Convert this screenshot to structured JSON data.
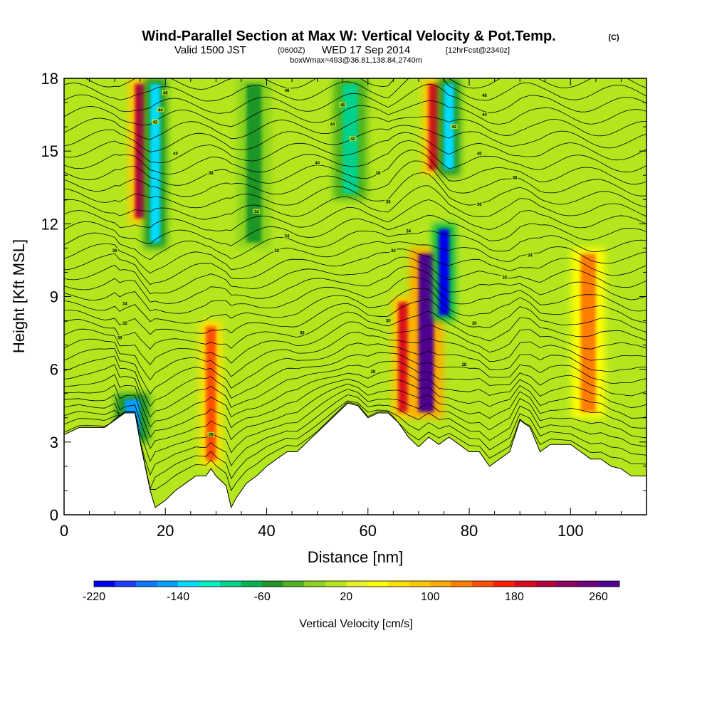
{
  "title": {
    "main": "Wind-Parallel Section at Max W: Vertical Velocity & Pot.Temp.",
    "main_suffix": "(C)",
    "sub_a": "Valid 1500 JST",
    "sub_b": "(0600Z)",
    "sub_c": "WED 17 Sep 2014",
    "sub_d": "[12hrFcst@2340z]",
    "small": "boxWmax=493@36.81,138.84,2740m"
  },
  "chart_data": {
    "type": "heatmap",
    "xlabel": "Distance [nm]",
    "ylabel": "Height [Kft MSL]",
    "xlim": [
      0,
      115
    ],
    "ylim": [
      0,
      18
    ],
    "x_ticks": [
      0,
      20,
      40,
      60,
      80,
      100
    ],
    "y_ticks": [
      0,
      3,
      6,
      9,
      12,
      15,
      18
    ],
    "x_tick_labels": [
      "0",
      "20",
      "40",
      "60",
      "80",
      "100"
    ],
    "y_tick_labels": [
      "0",
      "3",
      "6",
      "9",
      "12",
      "15",
      "18"
    ],
    "colorbar": {
      "title": "Vertical Velocity [cm/s]",
      "min": -220,
      "max": 280,
      "step": 20,
      "labeled_values": [
        -220,
        -140,
        -60,
        20,
        100,
        180,
        260
      ],
      "labels": [
        "-220",
        "-140",
        "-60",
        "20",
        "100",
        "180",
        "260"
      ],
      "colors": [
        "#0000f0",
        "#1e3cff",
        "#0a78ff",
        "#00a0ff",
        "#00dcff",
        "#00f0c8",
        "#00d28c",
        "#00b450",
        "#1e9628",
        "#50b41e",
        "#8cd21e",
        "#b4e61e",
        "#e6f028",
        "#ffff00",
        "#ffe100",
        "#ffc800",
        "#ffaa00",
        "#ff7d00",
        "#ff5000",
        "#ff1e00",
        "#dc0a1e",
        "#b4003c",
        "#8c0064",
        "#6e007d",
        "#500091"
      ]
    },
    "terrain_profile": {
      "x": [
        0,
        3,
        8,
        10,
        12,
        14,
        15,
        16,
        17,
        18,
        20,
        22,
        24,
        26,
        28,
        29,
        30,
        32,
        33,
        34,
        36,
        38,
        40,
        42,
        44,
        46,
        48,
        50,
        52,
        54,
        56,
        58,
        60,
        62,
        64,
        66,
        68,
        70,
        72,
        74,
        76,
        78,
        80,
        82,
        84,
        86,
        88,
        90,
        92,
        94,
        96,
        98,
        100,
        102,
        104,
        106,
        108,
        110,
        112,
        115
      ],
      "height": [
        3.3,
        3.6,
        3.6,
        3.9,
        4.2,
        4.2,
        3.0,
        2.0,
        1.0,
        0.3,
        0.6,
        1.0,
        1.3,
        1.6,
        1.6,
        1.9,
        1.6,
        1.2,
        0.3,
        0.7,
        1.3,
        1.6,
        2.0,
        2.3,
        2.6,
        2.6,
        3.0,
        3.4,
        3.8,
        4.2,
        4.6,
        4.5,
        4.0,
        4.2,
        4.2,
        3.8,
        3.2,
        2.8,
        3.2,
        2.9,
        3.2,
        2.9,
        2.6,
        2.6,
        2.0,
        2.3,
        2.6,
        3.9,
        3.6,
        2.6,
        2.9,
        2.9,
        2.9,
        2.6,
        2.3,
        2.3,
        2.0,
        1.9,
        1.6,
        1.6
      ]
    },
    "updraft_bands": [
      {
        "x0": 14,
        "x1": 16,
        "top": 18,
        "bottom": 12,
        "w": 200
      },
      {
        "x0": 28,
        "x1": 30,
        "top": 8,
        "bottom": 2,
        "w": 140
      },
      {
        "x0": 66,
        "x1": 68,
        "top": 9,
        "bottom": 4,
        "w": 180
      },
      {
        "x0": 70,
        "x1": 73,
        "top": 11,
        "bottom": 4,
        "w": 260
      },
      {
        "x0": 102,
        "x1": 105,
        "top": 11,
        "bottom": 4,
        "w": 120
      },
      {
        "x0": 72,
        "x1": 74,
        "top": 18,
        "bottom": 14,
        "w": 180
      }
    ],
    "downdraft_bands": [
      {
        "x0": 12,
        "x1": 15,
        "top": 5,
        "bottom": 3,
        "w": -160
      },
      {
        "x0": 17,
        "x1": 19,
        "top": 18,
        "bottom": 11,
        "w": -140
      },
      {
        "x0": 74,
        "x1": 76,
        "top": 12,
        "bottom": 8,
        "w": -220
      },
      {
        "x0": 75,
        "x1": 77,
        "top": 18,
        "bottom": 14,
        "w": -140
      },
      {
        "x0": 36,
        "x1": 39,
        "top": 18,
        "bottom": 11,
        "w": -60
      },
      {
        "x0": 55,
        "x1": 58,
        "top": 18,
        "bottom": 13,
        "w": -100
      }
    ],
    "contour_labels": [
      {
        "x": 20,
        "y": 17.4,
        "text": "46"
      },
      {
        "x": 19,
        "y": 16.7,
        "text": "44"
      },
      {
        "x": 18,
        "y": 16.2,
        "text": "42"
      },
      {
        "x": 22,
        "y": 14.9,
        "text": "40"
      },
      {
        "x": 29,
        "y": 14.1,
        "text": "38"
      },
      {
        "x": 10,
        "y": 10.9,
        "text": "36"
      },
      {
        "x": 12,
        "y": 8.7,
        "text": "34"
      },
      {
        "x": 12,
        "y": 7.9,
        "text": "32"
      },
      {
        "x": 11,
        "y": 7.3,
        "text": "30"
      },
      {
        "x": 44,
        "y": 17.5,
        "text": "48"
      },
      {
        "x": 55,
        "y": 16.9,
        "text": "46"
      },
      {
        "x": 53,
        "y": 16.1,
        "text": "44"
      },
      {
        "x": 57,
        "y": 15.5,
        "text": "42"
      },
      {
        "x": 50,
        "y": 14.5,
        "text": "40"
      },
      {
        "x": 62,
        "y": 14.1,
        "text": "38"
      },
      {
        "x": 64,
        "y": 12.9,
        "text": "36"
      },
      {
        "x": 38,
        "y": 12.5,
        "text": "34"
      },
      {
        "x": 44,
        "y": 11.5,
        "text": "34"
      },
      {
        "x": 42,
        "y": 10.9,
        "text": "32"
      },
      {
        "x": 65,
        "y": 10.9,
        "text": "32"
      },
      {
        "x": 68,
        "y": 11.7,
        "text": "34"
      },
      {
        "x": 47,
        "y": 7.5,
        "text": "30"
      },
      {
        "x": 64,
        "y": 8.0,
        "text": "30"
      },
      {
        "x": 61,
        "y": 5.9,
        "text": "28"
      },
      {
        "x": 29,
        "y": 3.3,
        "text": "28"
      },
      {
        "x": 83,
        "y": 17.3,
        "text": "48"
      },
      {
        "x": 83,
        "y": 16.5,
        "text": "44"
      },
      {
        "x": 77,
        "y": 16.0,
        "text": "42"
      },
      {
        "x": 82,
        "y": 14.9,
        "text": "40"
      },
      {
        "x": 89,
        "y": 13.9,
        "text": "38"
      },
      {
        "x": 82,
        "y": 12.8,
        "text": "36"
      },
      {
        "x": 92,
        "y": 10.7,
        "text": "34"
      },
      {
        "x": 87,
        "y": 9.8,
        "text": "32"
      },
      {
        "x": 81,
        "y": 7.9,
        "text": "30"
      },
      {
        "x": 79,
        "y": 6.2,
        "text": "28"
      }
    ],
    "isentrope_count": 36
  }
}
